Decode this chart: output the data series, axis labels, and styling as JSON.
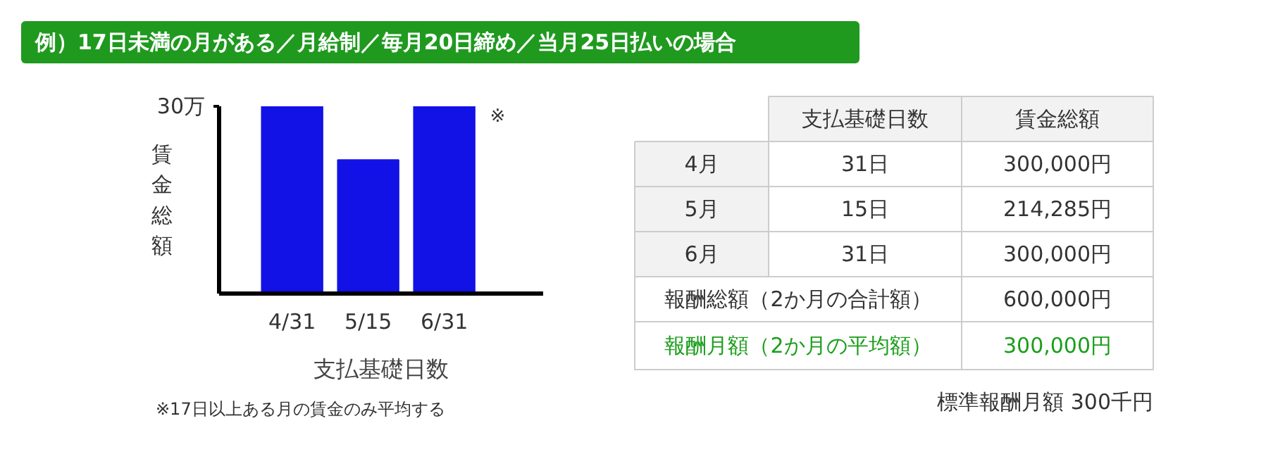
{
  "chart_data": [
    {
      "type": "bar",
      "title": "例）17日未満の月がある／月給制／毎月20日締め／当月25日払いの場合",
      "categories": [
        "4/31",
        "5/15",
        "6/31"
      ],
      "values": [
        30,
        21.4,
        30
      ],
      "color": "#1212e6",
      "xlabel": "支払基礎日数",
      "ylabel": "賃金総額",
      "ylim": [
        0,
        30
      ],
      "yticks": [
        {
          "value": 30,
          "label": "30万"
        }
      ],
      "annotations": [
        {
          "text": "※",
          "x": "6/31",
          "y": 30
        },
        "※17日以上ある月の賃金のみ平均する"
      ]
    },
    {
      "type": "other",
      "categories": [
        null,
        "支払基礎日数",
        "賃金総額"
      ],
      "y_categories": [
        "4月",
        "5月",
        "6月",
        "報酬総額（2か月の合計額）",
        "報酬月額（2か月の平均額）"
      ],
      "cell_labels": [
        [
          "31日",
          "300,000円"
        ],
        [
          "15日",
          "214,285円"
        ],
        [
          "31日",
          "300,000円"
        ],
        [
          null,
          "600,000円"
        ],
        [
          null,
          "300,000円"
        ]
      ],
      "color": "#1a9e1a",
      "annotations": [
        "標準報酬月額 300千円"
      ]
    }
  ]
}
